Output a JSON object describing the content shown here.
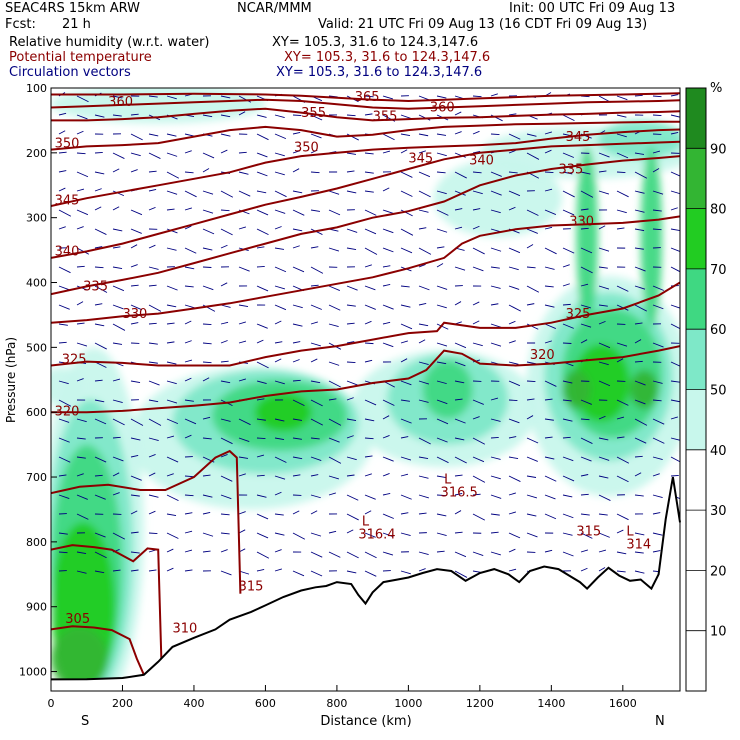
{
  "header": {
    "model": "SEAC4RS 15km ARW",
    "org": "NCAR/MMM",
    "init": "Init: 00 UTC Fri 09 Aug 13",
    "fcst_label": "Fcst:",
    "fcst_value": "21 h",
    "valid": "Valid: 21 UTC Fri 09 Aug 13 (16 CDT Fri 09 Aug 13)",
    "fields": [
      {
        "name": "Relative humidity (w.r.t. water)",
        "xy": "XY= 105.3, 31.6 to 124.3,147.6"
      },
      {
        "name": "Potential temperature",
        "xy": "XY= 105.3, 31.6 to 124.3,147.6"
      },
      {
        "name": "Circulation vectors",
        "xy": "XY= 105.3, 31.6 to 124.3,147.6"
      }
    ]
  },
  "colors": {
    "rh_30": "#ffffff",
    "rh_40": "#c8f7ec",
    "rh_50": "#7ee8c8",
    "rh_60": "#3fd882",
    "rh_70": "#22cc22",
    "rh_80": "#33b533",
    "rh_90": "#1f8a1f",
    "theta": "#8b0000",
    "vectors": "#000080",
    "terrain": "#000000"
  },
  "chart_data": {
    "type": "heatmap",
    "xlabel": "Distance (km)",
    "ylabel": "Pressure (hPa)",
    "xlim": [
      0,
      1760
    ],
    "ylim": [
      1030,
      100
    ],
    "x_ticks": [
      0,
      200,
      400,
      600,
      800,
      1000,
      1200,
      1400,
      1600
    ],
    "y_ticks": [
      100,
      200,
      300,
      400,
      500,
      600,
      700,
      800,
      900,
      1000
    ],
    "end_labels": {
      "left": "S",
      "right": "N"
    },
    "colorbar": {
      "unit": "%",
      "levels": [
        10,
        20,
        30,
        40,
        50,
        60,
        70,
        80,
        90
      ],
      "range": [
        0,
        100
      ]
    },
    "terrain": {
      "x": [
        0,
        100,
        200,
        260,
        300,
        340,
        400,
        460,
        500,
        560,
        600,
        650,
        700,
        740,
        770,
        800,
        840,
        860,
        880,
        900,
        930,
        970,
        1000,
        1040,
        1080,
        1120,
        1160,
        1200,
        1240,
        1280,
        1310,
        1340,
        1380,
        1420,
        1450,
        1480,
        1500,
        1530,
        1560,
        1590,
        1620,
        1650,
        1680,
        1700,
        1720,
        1740,
        1760
      ],
      "p": [
        1012,
        1012,
        1010,
        1005,
        985,
        962,
        948,
        935,
        920,
        908,
        898,
        885,
        875,
        870,
        868,
        862,
        865,
        882,
        895,
        878,
        862,
        858,
        855,
        848,
        842,
        845,
        860,
        848,
        842,
        850,
        862,
        845,
        838,
        842,
        852,
        862,
        872,
        855,
        840,
        852,
        860,
        858,
        872,
        850,
        765,
        700,
        770
      ]
    },
    "theta_contours": [
      {
        "value": 305,
        "x": [
          0,
          60,
          120,
          170,
          220,
          240,
          260
        ],
        "p": [
          935,
          930,
          932,
          936,
          950,
          980,
          1005
        ]
      },
      {
        "value": 310,
        "x": [
          0,
          60,
          120,
          170,
          230,
          270,
          300,
          310
        ],
        "p": [
          812,
          805,
          808,
          812,
          830,
          810,
          812,
          1005
        ]
      },
      {
        "value": 315,
        "x": [
          0,
          80,
          160,
          250,
          320,
          400,
          460,
          500,
          520,
          530
        ],
        "p": [
          725,
          715,
          712,
          720,
          720,
          700,
          670,
          660,
          670,
          880
        ]
      },
      {
        "value": 316.4,
        "x": [
          870
        ],
        "p": [
          775
        ],
        "low": true
      },
      {
        "value": 316.5,
        "x": [
          1100
        ],
        "p": [
          705
        ],
        "low": true
      },
      {
        "value": 314,
        "x": [
          1630
        ],
        "p": [
          795
        ],
        "low": true
      },
      {
        "value": 320,
        "x": [
          0,
          100,
          200,
          300,
          400,
          500,
          600,
          700,
          800,
          900,
          1000,
          1050,
          1100,
          1150,
          1200,
          1300,
          1400,
          1500,
          1600,
          1700,
          1760
        ],
        "p": [
          600,
          600,
          598,
          594,
          590,
          585,
          575,
          568,
          565,
          555,
          548,
          535,
          505,
          510,
          525,
          528,
          525,
          520,
          515,
          505,
          498
        ]
      },
      {
        "value": 325,
        "x": [
          0,
          100,
          200,
          300,
          400,
          500,
          600,
          700,
          800,
          900,
          1000,
          1080,
          1100,
          1200,
          1300,
          1400,
          1500,
          1600,
          1700,
          1760
        ],
        "p": [
          528,
          522,
          524,
          528,
          528,
          528,
          515,
          505,
          498,
          488,
          478,
          475,
          462,
          470,
          470,
          462,
          450,
          440,
          420,
          400
        ]
      },
      {
        "value": 330,
        "x": [
          0,
          100,
          200,
          300,
          400,
          500,
          600,
          700,
          800,
          900,
          1000,
          1100,
          1150,
          1200,
          1300,
          1400,
          1500,
          1600,
          1700,
          1760
        ],
        "p": [
          462,
          458,
          452,
          448,
          440,
          432,
          422,
          412,
          402,
          392,
          378,
          362,
          340,
          328,
          318,
          312,
          310,
          308,
          303,
          298
        ]
      },
      {
        "value": 335,
        "x": [
          0,
          100,
          200,
          300,
          400,
          500,
          600,
          700,
          800,
          900,
          1000,
          1100,
          1200,
          1300,
          1400,
          1500,
          1600,
          1700,
          1760
        ],
        "p": [
          418,
          406,
          396,
          385,
          370,
          355,
          340,
          325,
          315,
          300,
          290,
          275,
          250,
          235,
          225,
          218,
          212,
          208,
          205
        ]
      },
      {
        "value": 340,
        "x": [
          0,
          100,
          200,
          300,
          400,
          500,
          600,
          700,
          800,
          900,
          1000,
          1100,
          1200,
          1300,
          1400,
          1500,
          1600,
          1700,
          1760
        ],
        "p": [
          362,
          352,
          340,
          325,
          310,
          295,
          280,
          268,
          255,
          240,
          225,
          210,
          200,
          195,
          190,
          188,
          186,
          184,
          183
        ]
      },
      {
        "value": 345,
        "x": [
          0,
          100,
          200,
          300,
          400,
          500,
          600,
          700,
          800,
          900,
          1000,
          1100,
          1200,
          1300,
          1400,
          1500,
          1600,
          1700,
          1760
        ],
        "p": [
          282,
          270,
          260,
          250,
          240,
          230,
          215,
          205,
          200,
          195,
          192,
          190,
          188,
          185,
          178,
          172,
          168,
          165,
          164
        ]
      },
      {
        "value": 350,
        "x": [
          0,
          100,
          200,
          300,
          400,
          500,
          600,
          700,
          800,
          900,
          1000,
          1100,
          1200,
          1300,
          1400,
          1500,
          1600,
          1700,
          1760
        ],
        "p": [
          195,
          190,
          188,
          185,
          175,
          165,
          160,
          165,
          175,
          172,
          165,
          160,
          158,
          156,
          155,
          154,
          153,
          152,
          152
        ]
      },
      {
        "value": 355,
        "x": [
          0,
          100,
          200,
          300,
          400,
          500,
          600,
          700,
          800,
          900,
          1000,
          1100,
          1200,
          1300,
          1400,
          1500,
          1600,
          1700,
          1760
        ],
        "p": [
          150,
          150,
          148,
          145,
          140,
          135,
          132,
          138,
          145,
          150,
          148,
          146,
          145,
          143,
          141,
          140,
          138,
          137,
          136
        ]
      },
      {
        "value": 360,
        "x": [
          0,
          100,
          200,
          300,
          400,
          500,
          600,
          700,
          800,
          900,
          1000,
          1100,
          1200,
          1300,
          1400,
          1500,
          1600,
          1700,
          1760
        ],
        "p": [
          130,
          128,
          126,
          124,
          122,
          120,
          118,
          120,
          125,
          130,
          132,
          130,
          128,
          126,
          124,
          122,
          121,
          120,
          119
        ]
      },
      {
        "value": 365,
        "x": [
          0,
          200,
          400,
          600,
          700,
          800,
          900,
          1000,
          1100,
          1200,
          1300,
          1400,
          1500,
          1600,
          1700,
          1760
        ],
        "p": [
          110,
          110,
          109,
          110,
          112,
          115,
          118,
          120,
          118,
          116,
          114,
          112,
          111,
          110,
          109,
          108
        ]
      }
    ],
    "theta_label_positions": [
      {
        "text": "305",
        "x": 40,
        "p": 925
      },
      {
        "text": "310",
        "x": 340,
        "p": 940
      },
      {
        "text": "315",
        "x": 525,
        "p": 875
      },
      {
        "text": "L",
        "x": 870,
        "p": 775
      },
      {
        "text": "316.4",
        "x": 860,
        "p": 795
      },
      {
        "text": "L",
        "x": 1100,
        "p": 710
      },
      {
        "text": "316.5",
        "x": 1090,
        "p": 730
      },
      {
        "text": "315",
        "x": 1470,
        "p": 790
      },
      {
        "text": "L",
        "x": 1610,
        "p": 790
      },
      {
        "text": "314",
        "x": 1610,
        "p": 810
      },
      {
        "text": "320",
        "x": 10,
        "p": 605
      },
      {
        "text": "320",
        "x": 1340,
        "p": 518
      },
      {
        "text": "325",
        "x": 30,
        "p": 525
      },
      {
        "text": "325",
        "x": 1440,
        "p": 455
      },
      {
        "text": "330",
        "x": 200,
        "p": 455
      },
      {
        "text": "330",
        "x": 1450,
        "p": 312
      },
      {
        "text": "335",
        "x": 90,
        "p": 412
      },
      {
        "text": "335",
        "x": 1420,
        "p": 232
      },
      {
        "text": "340",
        "x": 10,
        "p": 358
      },
      {
        "text": "340",
        "x": 1170,
        "p": 218
      },
      {
        "text": "345",
        "x": 10,
        "p": 280
      },
      {
        "text": "345",
        "x": 1000,
        "p": 215
      },
      {
        "text": "345",
        "x": 1440,
        "p": 182
      },
      {
        "text": "350",
        "x": 10,
        "p": 192
      },
      {
        "text": "350",
        "x": 680,
        "p": 198
      },
      {
        "text": "355",
        "x": 700,
        "p": 145
      },
      {
        "text": "355",
        "x": 900,
        "p": 150
      },
      {
        "text": "360",
        "x": 160,
        "p": 128
      },
      {
        "text": "360",
        "x": 1060,
        "p": 136
      },
      {
        "text": "365",
        "x": 850,
        "p": 120
      }
    ],
    "rh_blobs": [
      {
        "level": 40,
        "cx": 120,
        "cp": 780,
        "rx": 140,
        "rp": 280
      },
      {
        "level": 50,
        "cx": 110,
        "cp": 810,
        "rx": 120,
        "rp": 230
      },
      {
        "level": 60,
        "cx": 100,
        "cp": 840,
        "rx": 100,
        "rp": 190
      },
      {
        "level": 70,
        "cx": 90,
        "cp": 900,
        "rx": 90,
        "rp": 130
      },
      {
        "level": 80,
        "cx": 80,
        "cp": 980,
        "rx": 80,
        "rp": 50
      },
      {
        "level": 40,
        "cx": 560,
        "cp": 640,
        "rx": 340,
        "rp": 110
      },
      {
        "level": 50,
        "cx": 600,
        "cp": 615,
        "rx": 260,
        "rp": 80
      },
      {
        "level": 60,
        "cx": 640,
        "cp": 605,
        "rx": 190,
        "rp": 55
      },
      {
        "level": 70,
        "cx": 650,
        "cp": 600,
        "rx": 80,
        "rp": 30
      },
      {
        "level": 40,
        "cx": 1100,
        "cp": 595,
        "rx": 260,
        "rp": 90
      },
      {
        "level": 50,
        "cx": 1110,
        "cp": 580,
        "rx": 170,
        "rp": 70
      },
      {
        "level": 60,
        "cx": 1110,
        "cp": 565,
        "rx": 70,
        "rp": 45
      },
      {
        "level": 40,
        "cx": 1560,
        "cp": 560,
        "rx": 230,
        "rp": 170
      },
      {
        "level": 50,
        "cx": 1560,
        "cp": 545,
        "rx": 180,
        "rp": 130
      },
      {
        "level": 60,
        "cx": 1570,
        "cp": 540,
        "rx": 140,
        "rp": 100
      },
      {
        "level": 70,
        "cx": 1540,
        "cp": 555,
        "rx": 80,
        "rp": 60
      },
      {
        "level": 80,
        "cx": 1470,
        "cp": 565,
        "rx": 40,
        "rp": 30
      },
      {
        "level": 80,
        "cx": 1660,
        "cp": 565,
        "rx": 40,
        "rp": 30
      },
      {
        "level": 60,
        "cx": 1500,
        "cp": 330,
        "rx": 30,
        "rp": 140
      },
      {
        "level": 60,
        "cx": 1680,
        "cp": 330,
        "rx": 30,
        "rp": 140
      },
      {
        "level": 40,
        "cx": 1250,
        "cp": 270,
        "rx": 180,
        "rp": 60
      },
      {
        "level": 40,
        "cx": 1500,
        "cp": 200,
        "rx": 300,
        "rp": 40
      },
      {
        "level": 50,
        "cx": 1650,
        "cp": 180,
        "rx": 120,
        "rp": 30
      },
      {
        "level": 40,
        "cx": 300,
        "cp": 125,
        "rx": 300,
        "rp": 30
      },
      {
        "level": 40,
        "cx": 30,
        "cp": 560,
        "rx": 60,
        "rp": 30
      }
    ]
  }
}
